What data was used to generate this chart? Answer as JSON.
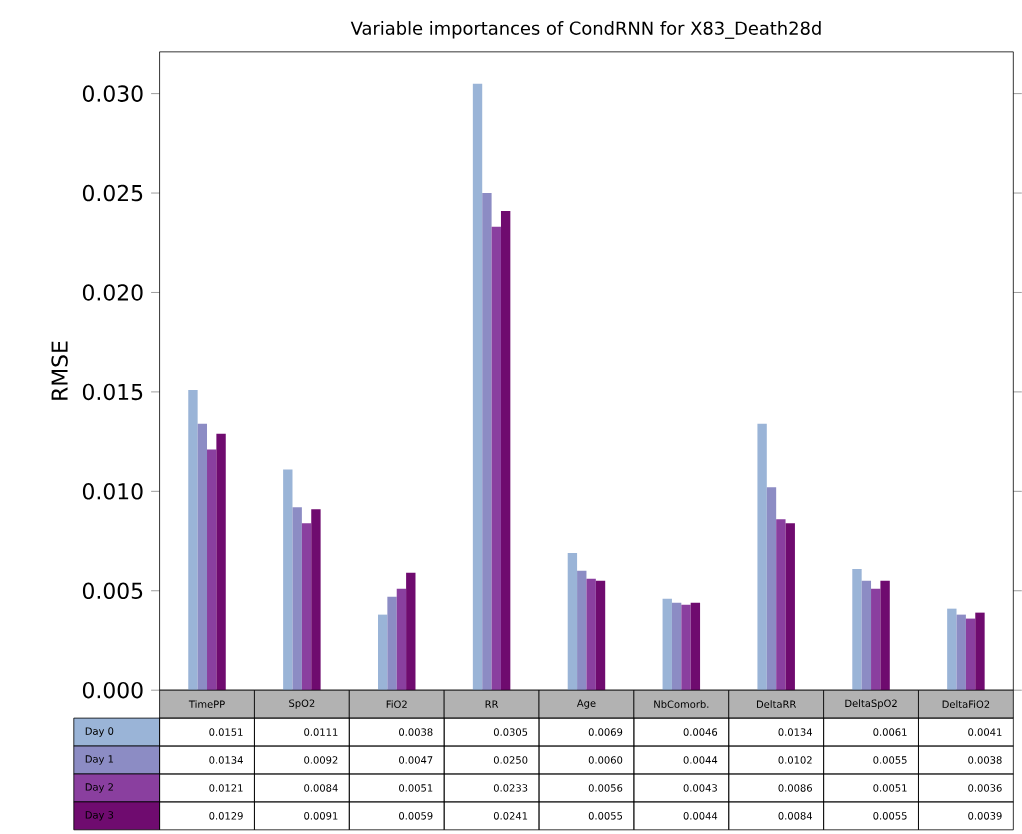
{
  "chart_data": {
    "type": "bar",
    "title": "Variable importances of CondRNN for X83_Death28d",
    "ylabel": "RMSE",
    "categories": [
      "TimePP",
      "SpO2",
      "FiO2",
      "RR",
      "Age",
      "NbComorb.",
      "DeltaRR",
      "DeltaSpO2",
      "DeltaFiO2"
    ],
    "series": [
      {
        "name": "Day 0",
        "color": "#9ab4d7",
        "values": [
          0.0151,
          0.0111,
          0.0038,
          0.0305,
          0.0069,
          0.0046,
          0.0134,
          0.0061,
          0.0041
        ],
        "value_labels": [
          "0.0151",
          "0.0111",
          "0.0038",
          "0.0305",
          "0.0069",
          "0.0046",
          "0.0134",
          "0.0061",
          "0.0041"
        ]
      },
      {
        "name": "Day 1",
        "color": "#8c8cc4",
        "values": [
          0.0134,
          0.0092,
          0.0047,
          0.025,
          0.006,
          0.0044,
          0.0102,
          0.0055,
          0.0038
        ],
        "value_labels": [
          "0.0134",
          "0.0092",
          "0.0047",
          "0.0250",
          "0.0060",
          "0.0044",
          "0.0102",
          "0.0055",
          "0.0038"
        ]
      },
      {
        "name": "Day 2",
        "color": "#8a3f9f",
        "values": [
          0.0121,
          0.0084,
          0.0051,
          0.0233,
          0.0056,
          0.0043,
          0.0086,
          0.0051,
          0.0036
        ],
        "value_labels": [
          "0.0121",
          "0.0084",
          "0.0051",
          "0.0233",
          "0.0056",
          "0.0043",
          "0.0086",
          "0.0051",
          "0.0036"
        ]
      },
      {
        "name": "Day 3",
        "color": "#6f0b6f",
        "values": [
          0.0129,
          0.0091,
          0.0059,
          0.0241,
          0.0055,
          0.0044,
          0.0084,
          0.0055,
          0.0039
        ],
        "value_labels": [
          "0.0129",
          "0.0091",
          "0.0059",
          "0.0241",
          "0.0055",
          "0.0044",
          "0.0084",
          "0.0055",
          "0.0039"
        ]
      }
    ],
    "ylim": [
      0,
      0.0321
    ],
    "yticks": [
      {
        "value": 0,
        "label": "0.000"
      },
      {
        "value": 0.005,
        "label": "0.005"
      },
      {
        "value": 0.01,
        "label": "0.010"
      },
      {
        "value": 0.015,
        "label": "0.015"
      },
      {
        "value": 0.02,
        "label": "0.020"
      },
      {
        "value": 0.025,
        "label": "0.025"
      },
      {
        "value": 0.03,
        "label": "0.030"
      }
    ],
    "grid": false
  }
}
